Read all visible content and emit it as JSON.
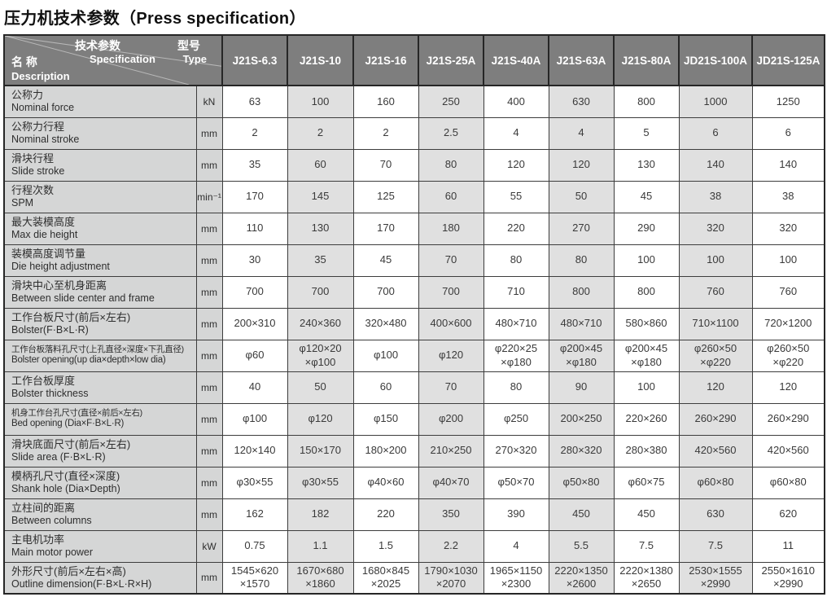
{
  "page_title": "压力机技术参数（Press specification）",
  "colors": {
    "header_bg": "#7e7e7e",
    "label_bg": "#d5d6d6",
    "alt_bg": "#e0e0e0",
    "border": "#3d3d3d"
  },
  "table": {
    "corner": {
      "spec_cn": "技术参数",
      "spec_en": "Specification",
      "type_cn": "型号",
      "type_en": "Type",
      "name_cn": "名 称",
      "name_en": "Description"
    },
    "models": [
      "J21S-6.3",
      "J21S-10",
      "J21S-16",
      "J21S-25A",
      "J21S-40A",
      "J21S-63A",
      "J21S-80A",
      "JD21S-100A",
      "JD21S-125A"
    ],
    "rows": [
      {
        "cn": "公称力",
        "en": "Nominal force",
        "unit": "kN",
        "values": [
          "63",
          "100",
          "160",
          "250",
          "400",
          "630",
          "800",
          "1000",
          "1250"
        ]
      },
      {
        "cn": "公称力行程",
        "en": "Nominal stroke",
        "unit": "mm",
        "values": [
          "2",
          "2",
          "2",
          "2.5",
          "4",
          "4",
          "5",
          "6",
          "6"
        ]
      },
      {
        "cn": "滑块行程",
        "en": "Slide stroke",
        "unit": "mm",
        "values": [
          "35",
          "60",
          "70",
          "80",
          "120",
          "120",
          "130",
          "140",
          "140"
        ]
      },
      {
        "cn": "行程次数",
        "en": "SPM",
        "unit": "min⁻¹",
        "values": [
          "170",
          "145",
          "125",
          "60",
          "55",
          "50",
          "45",
          "38",
          "38"
        ]
      },
      {
        "cn": "最大装模高度",
        "en": "Max die height",
        "unit": "mm",
        "values": [
          "110",
          "130",
          "170",
          "180",
          "220",
          "270",
          "290",
          "320",
          "320"
        ]
      },
      {
        "cn": "装模高度调节量",
        "en": "Die height adjustment",
        "unit": "mm",
        "values": [
          "30",
          "35",
          "45",
          "70",
          "80",
          "80",
          "100",
          "100",
          "100"
        ]
      },
      {
        "cn": "滑块中心至机身距离",
        "en": "Between slide center and frame",
        "unit": "mm",
        "values": [
          "700",
          "700",
          "700",
          "700",
          "710",
          "800",
          "800",
          "760",
          "760"
        ]
      },
      {
        "cn": "工作台板尺寸(前后×左右)",
        "en": "Bolster(F·B×L·R)",
        "unit": "mm",
        "values": [
          "200×310",
          "240×360",
          "320×480",
          "400×600",
          "480×710",
          "480×710",
          "580×860",
          "710×1100",
          "720×1200"
        ]
      },
      {
        "cn": "工作台板落料孔尺寸(上孔直径×深度×下孔直径)",
        "en": "Bolster opening(up dia×depth×low dia)",
        "unit": "mm",
        "values": [
          "φ60",
          "φ120×20\n×φ100",
          "φ100",
          "φ120",
          "φ220×25\n×φ180",
          "φ200×45\n×φ180",
          "φ200×45\n×φ180",
          "φ260×50\n×φ220",
          "φ260×50\n×φ220"
        ]
      },
      {
        "cn": "工作台板厚度",
        "en": "Bolster thickness",
        "unit": "mm",
        "values": [
          "40",
          "50",
          "60",
          "70",
          "80",
          "90",
          "100",
          "120",
          "120"
        ]
      },
      {
        "cn": "机身工作台孔尺寸(直径×前后×左右)",
        "en": "Bed opening (Dia×F·B×L·R)",
        "unit": "mm",
        "values": [
          "φ100",
          "φ120",
          "φ150",
          "φ200",
          "φ250",
          "200×250",
          "220×260",
          "260×290",
          "260×290"
        ]
      },
      {
        "cn": "滑块底面尺寸(前后×左右)",
        "en": "Slide area (F·B×L·R)",
        "unit": "mm",
        "values": [
          "120×140",
          "150×170",
          "180×200",
          "210×250",
          "270×320",
          "280×320",
          "280×380",
          "420×560",
          "420×560"
        ]
      },
      {
        "cn": "模柄孔尺寸(直径×深度)",
        "en": "Shank hole (Dia×Depth)",
        "unit": "mm",
        "values": [
          "φ30×55",
          "φ30×55",
          "φ40×60",
          "φ40×70",
          "φ50×70",
          "φ50×80",
          "φ60×75",
          "φ60×80",
          "φ60×80"
        ]
      },
      {
        "cn": "立柱间的距离",
        "en": "Between columns",
        "unit": "mm",
        "values": [
          "162",
          "182",
          "220",
          "350",
          "390",
          "450",
          "450",
          "630",
          "620"
        ]
      },
      {
        "cn": "主电机功率",
        "en": "Main motor power",
        "unit": "kW",
        "values": [
          "0.75",
          "1.1",
          "1.5",
          "2.2",
          "4",
          "5.5",
          "7.5",
          "7.5",
          "11"
        ]
      },
      {
        "cn": "外形尺寸(前后×左右×高)",
        "en": "Outline dimension(F·B×L·R×H)",
        "unit": "mm",
        "values": [
          "1545×620\n×1570",
          "1670×680\n×1860",
          "1680×845\n×2025",
          "1790×1030\n×2070",
          "1965×1150\n×2300",
          "2220×1350\n×2600",
          "2220×1380\n×2650",
          "2530×1555\n×2990",
          "2550×1610\n×2990"
        ]
      }
    ]
  }
}
